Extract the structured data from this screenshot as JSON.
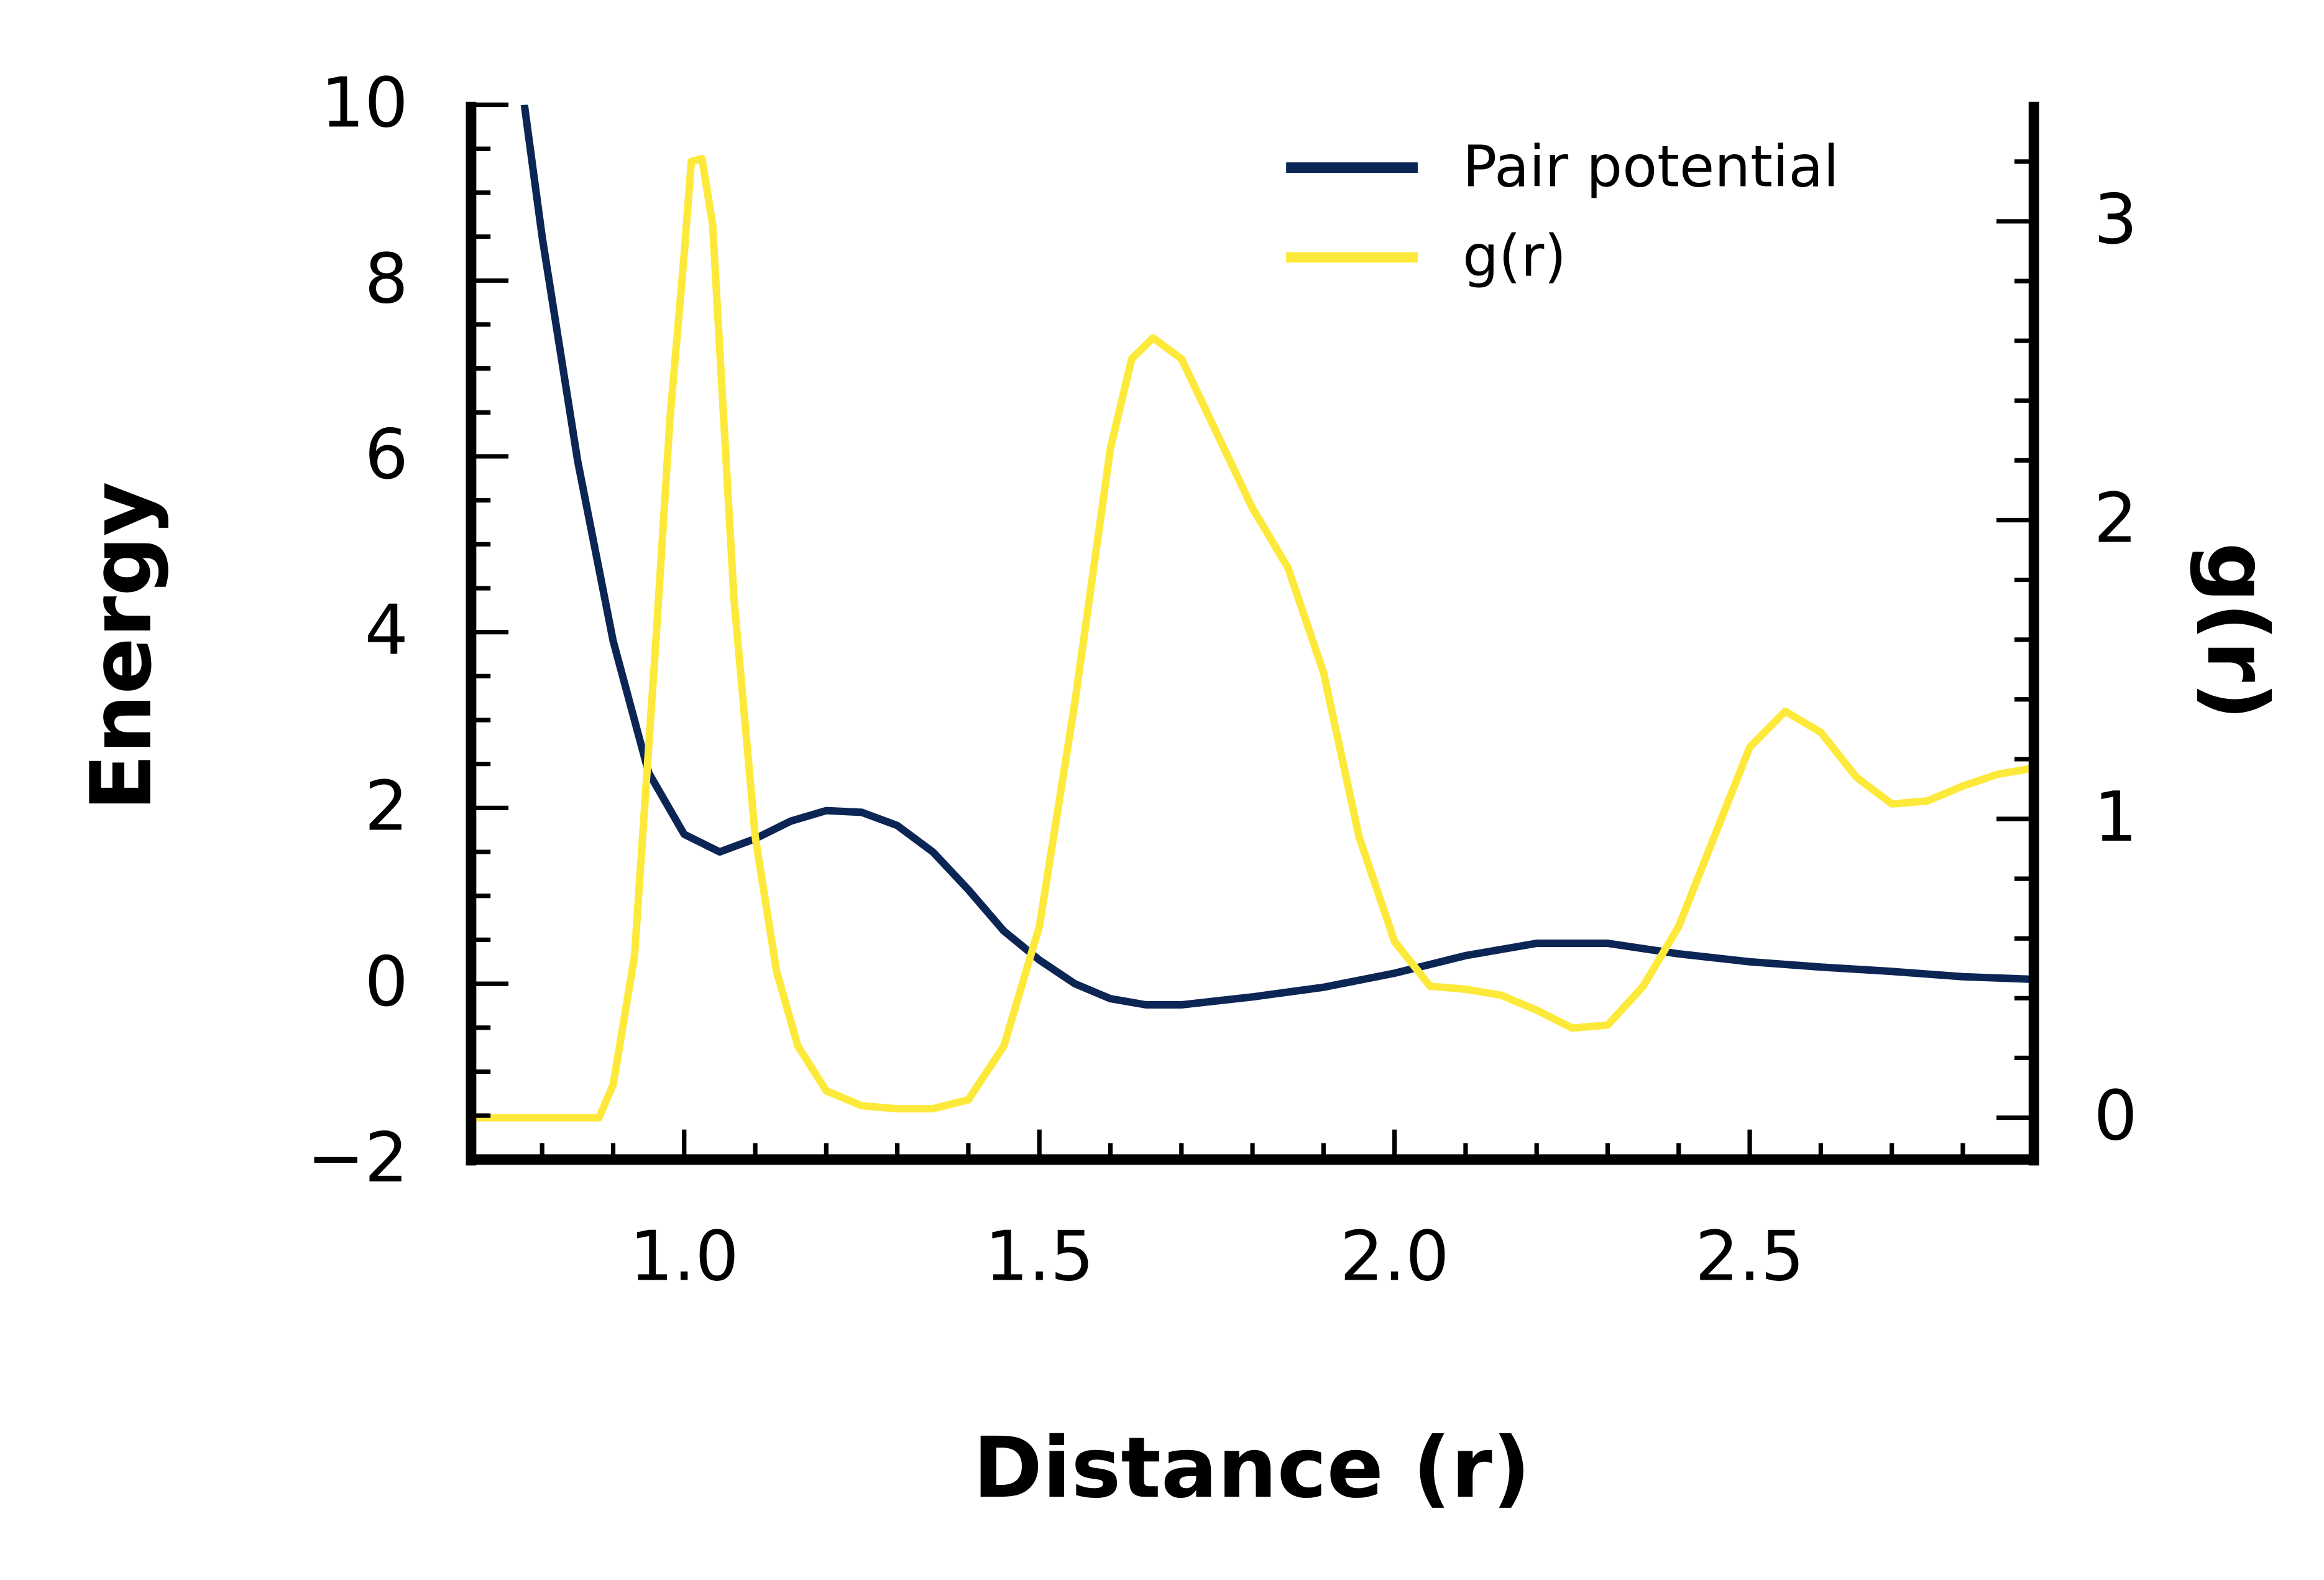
{
  "chart_data": {
    "type": "line",
    "xlabel": "Distance (r)",
    "ylabel": "Energy",
    "y2label": "g(r)",
    "xlim": [
      0.7,
      2.9
    ],
    "ylim": [
      -2,
      10
    ],
    "y2lim": [
      -0.14,
      3.39
    ],
    "xticks": [
      {
        "value": 1.0,
        "label": "1.0"
      },
      {
        "value": 1.5,
        "label": "1.5"
      },
      {
        "value": 2.0,
        "label": "2.0"
      },
      {
        "value": 2.5,
        "label": "2.5"
      }
    ],
    "xticks_minor": [
      0.8,
      0.9,
      1.1,
      1.2,
      1.3,
      1.4,
      1.6,
      1.7,
      1.8,
      1.9,
      2.1,
      2.2,
      2.3,
      2.4,
      2.6,
      2.7,
      2.8
    ],
    "yticks": [
      {
        "value": -2,
        "label": "−2"
      },
      0,
      2,
      4,
      6,
      8,
      10
    ],
    "yticks_minor": [
      -1.5,
      -1,
      -0.5,
      0.5,
      1,
      1.5,
      2.5,
      3,
      3.5,
      4.5,
      5,
      5.5,
      6.5,
      7,
      7.5,
      8.5,
      9,
      9.5
    ],
    "y2ticks": [
      0,
      1,
      2,
      3
    ],
    "y2ticks_minor": [
      0.2,
      0.4,
      0.6,
      0.8,
      1.2,
      1.4,
      1.6,
      1.8,
      2.2,
      2.4,
      2.6,
      2.8,
      3.2
    ],
    "legend": "upper right",
    "series": [
      {
        "name": "Pair potential",
        "color": "#0b2554",
        "axis": "y",
        "x": [
          0.775,
          0.8,
          0.85,
          0.9,
          0.95,
          1.0,
          1.05,
          1.1,
          1.15,
          1.2,
          1.25,
          1.3,
          1.35,
          1.4,
          1.45,
          1.5,
          1.55,
          1.6,
          1.65,
          1.7,
          1.8,
          1.9,
          2.0,
          2.1,
          2.2,
          2.3,
          2.4,
          2.5,
          2.6,
          2.7,
          2.8,
          2.9
        ],
        "values": [
          10,
          8.5,
          5.95,
          3.9,
          2.4,
          1.7,
          1.5,
          1.65,
          1.85,
          1.97,
          1.95,
          1.8,
          1.5,
          1.07,
          0.6,
          0.27,
          0,
          -0.17,
          -0.24,
          -0.24,
          -0.15,
          -0.04,
          0.12,
          0.32,
          0.46,
          0.46,
          0.34,
          0.25,
          0.19,
          0.14,
          0.08,
          0.05
        ]
      },
      {
        "name": "g(r)",
        "color": "#fde93a",
        "axis": "y2",
        "x": [
          0.7,
          0.88,
          0.9,
          0.93,
          0.96,
          0.98,
          1.0,
          1.01,
          1.025,
          1.04,
          1.07,
          1.1,
          1.13,
          1.16,
          1.2,
          1.25,
          1.3,
          1.35,
          1.4,
          1.45,
          1.5,
          1.55,
          1.6,
          1.63,
          1.66,
          1.7,
          1.75,
          1.8,
          1.85,
          1.9,
          1.95,
          2.0,
          2.05,
          2.1,
          2.15,
          2.2,
          2.25,
          2.3,
          2.35,
          2.4,
          2.45,
          2.5,
          2.55,
          2.6,
          2.65,
          2.7,
          2.75,
          2.8,
          2.85,
          2.9
        ],
        "values": [
          0,
          0,
          0.11,
          0.54,
          1.59,
          2.34,
          2.89,
          3.2,
          3.21,
          2.99,
          1.74,
          0.94,
          0.49,
          0.24,
          0.09,
          0.04,
          0.03,
          0.03,
          0.06,
          0.24,
          0.64,
          1.39,
          2.24,
          2.54,
          2.61,
          2.54,
          2.29,
          2.04,
          1.84,
          1.49,
          0.94,
          0.59,
          0.44,
          0.43,
          0.41,
          0.36,
          0.3,
          0.31,
          0.44,
          0.64,
          0.94,
          1.24,
          1.36,
          1.29,
          1.14,
          1.05,
          1.06,
          1.11,
          1.15,
          1.17
        ]
      }
    ]
  }
}
